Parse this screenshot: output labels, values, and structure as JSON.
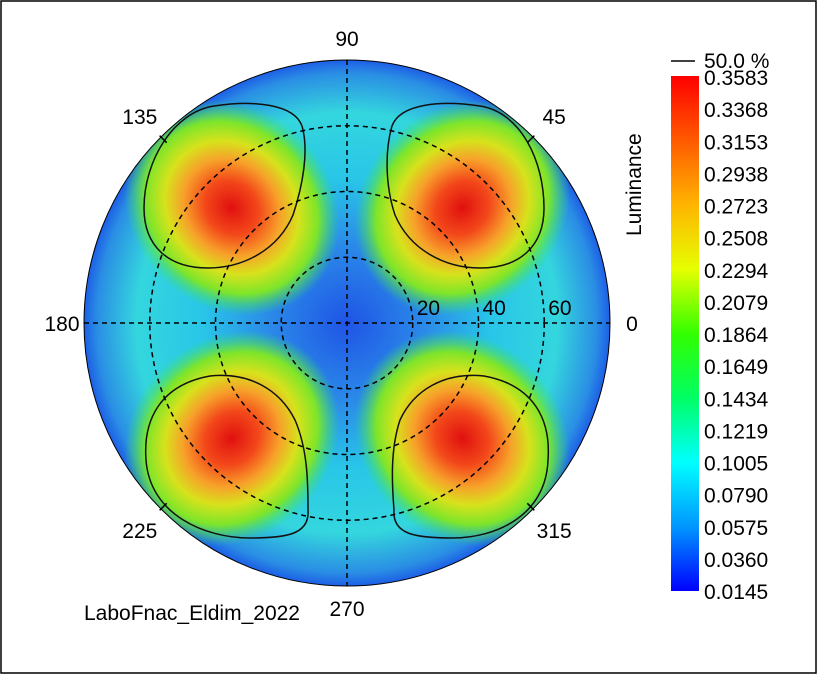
{
  "chart_data": {
    "type": "heatmap",
    "projection": "polar",
    "quantity_label": "Luminance",
    "footer_label": "LaboFnac_Eldim_2022",
    "angle_labels": [
      "0",
      "45",
      "90",
      "135",
      "180",
      "225",
      "270",
      "315"
    ],
    "radial_ticks": [
      20,
      40,
      60
    ],
    "radial_tick_labels": [
      "20",
      "40",
      "60"
    ],
    "radial_max": 80,
    "contour_label": "50.0 %",
    "colorbar": {
      "min": 0.0145,
      "max": 0.3583,
      "labels": [
        "0.3583",
        "0.3368",
        "0.3153",
        "0.2938",
        "0.2723",
        "0.2508",
        "0.2294",
        "0.2079",
        "0.1864",
        "0.1649",
        "0.1434",
        "0.1219",
        "0.1005",
        "0.0790",
        "0.0575",
        "0.0360",
        "0.0145"
      ],
      "colormap": "rainbow (blue-cyan-green-yellow-red)"
    },
    "lobes": [
      {
        "azimuth": 45,
        "peak_value": 0.3583
      },
      {
        "azimuth": 135,
        "peak_value": 0.3583
      },
      {
        "azimuth": 225,
        "peak_value": 0.3583
      },
      {
        "azimuth": 315,
        "peak_value": 0.3583
      }
    ],
    "center_value": 0.0145,
    "grid": true
  }
}
